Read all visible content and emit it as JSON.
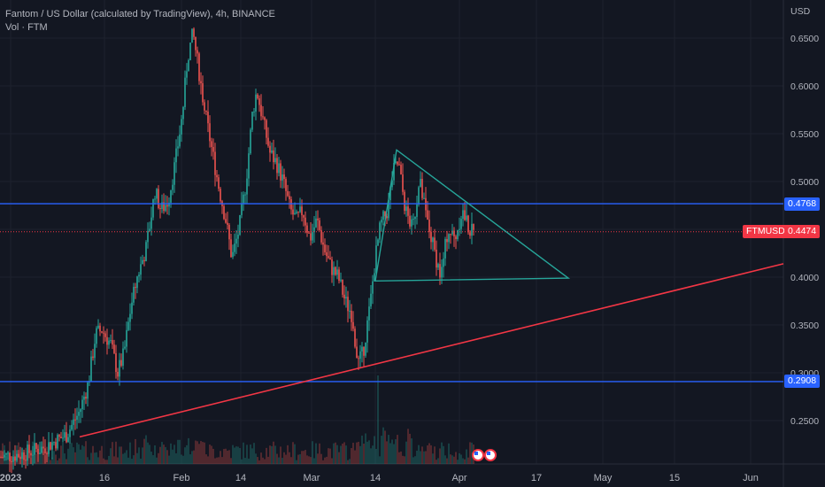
{
  "header": {
    "title": "Fantom / US Dollar (calculated by TradingView), 4h, BINANCE",
    "volume_label": "Vol · FTM"
  },
  "price_axis": {
    "currency": "USD",
    "ticks": [
      "0.6500",
      "0.6000",
      "0.5500",
      "0.5000",
      "0.4500",
      "0.4000",
      "0.3500",
      "0.3000",
      "0.2500"
    ],
    "tick_values": [
      0.65,
      0.6,
      0.55,
      0.5,
      0.45,
      0.4,
      0.35,
      0.3,
      0.25
    ]
  },
  "time_axis": {
    "ticks": [
      "2023",
      "16",
      "Feb",
      "14",
      "Mar",
      "14",
      "Apr",
      "17",
      "May",
      "15",
      "Jun"
    ]
  },
  "levels": [
    {
      "name": "upper-level",
      "value": 0.4768,
      "label": "0.4768",
      "color": "#2962ff"
    },
    {
      "name": "lower-level",
      "value": 0.2908,
      "label": "0.2908",
      "color": "#2962ff"
    }
  ],
  "current_price": {
    "symbol": "FTMUSD",
    "value": 0.4474,
    "label": "0.4474",
    "color": "#f23645"
  },
  "colors": {
    "up": "#26a69a",
    "down": "#ef5350",
    "triangle": "#26a69a",
    "trendline": "#f23645",
    "level": "#2962ff"
  },
  "chart_data": {
    "type": "candlestick",
    "ylim": [
      0.205,
      0.675
    ],
    "grid": true,
    "close_path": [
      [
        0,
        0.212
      ],
      [
        25,
        0.215
      ],
      [
        50,
        0.222
      ],
      [
        75,
        0.235
      ],
      [
        90,
        0.26
      ],
      [
        100,
        0.29
      ],
      [
        108,
        0.34
      ],
      [
        115,
        0.345
      ],
      [
        125,
        0.33
      ],
      [
        133,
        0.3
      ],
      [
        140,
        0.32
      ],
      [
        148,
        0.37
      ],
      [
        155,
        0.4
      ],
      [
        165,
        0.43
      ],
      [
        175,
        0.49
      ],
      [
        182,
        0.47
      ],
      [
        190,
        0.48
      ],
      [
        198,
        0.52
      ],
      [
        206,
        0.57
      ],
      [
        212,
        0.63
      ],
      [
        218,
        0.655
      ],
      [
        224,
        0.62
      ],
      [
        232,
        0.57
      ],
      [
        240,
        0.53
      ],
      [
        248,
        0.49
      ],
      [
        255,
        0.46
      ],
      [
        262,
        0.42
      ],
      [
        270,
        0.45
      ],
      [
        278,
        0.5
      ],
      [
        285,
        0.57
      ],
      [
        290,
        0.595
      ],
      [
        298,
        0.56
      ],
      [
        305,
        0.53
      ],
      [
        312,
        0.52
      ],
      [
        320,
        0.5
      ],
      [
        328,
        0.47
      ],
      [
        335,
        0.46
      ],
      [
        342,
        0.47
      ],
      [
        350,
        0.44
      ],
      [
        358,
        0.46
      ],
      [
        366,
        0.43
      ],
      [
        374,
        0.41
      ],
      [
        382,
        0.4
      ],
      [
        390,
        0.375
      ],
      [
        398,
        0.36
      ],
      [
        404,
        0.31
      ],
      [
        410,
        0.32
      ],
      [
        418,
        0.37
      ],
      [
        424,
        0.42
      ],
      [
        430,
        0.455
      ],
      [
        438,
        0.47
      ],
      [
        444,
        0.51
      ],
      [
        450,
        0.52
      ],
      [
        458,
        0.47
      ],
      [
        466,
        0.45
      ],
      [
        474,
        0.5
      ],
      [
        482,
        0.46
      ],
      [
        490,
        0.43
      ],
      [
        498,
        0.4
      ],
      [
        506,
        0.45
      ],
      [
        514,
        0.44
      ],
      [
        522,
        0.47
      ],
      [
        530,
        0.45
      ],
      [
        536,
        0.445
      ]
    ],
    "trendline": {
      "from": [
        90,
        0.233
      ],
      "to": [
        885,
        0.414
      ]
    },
    "triangle": {
      "points": [
        [
          424,
          0.396
        ],
        [
          448,
          0.533
        ],
        [
          642,
          0.399
        ]
      ]
    }
  }
}
